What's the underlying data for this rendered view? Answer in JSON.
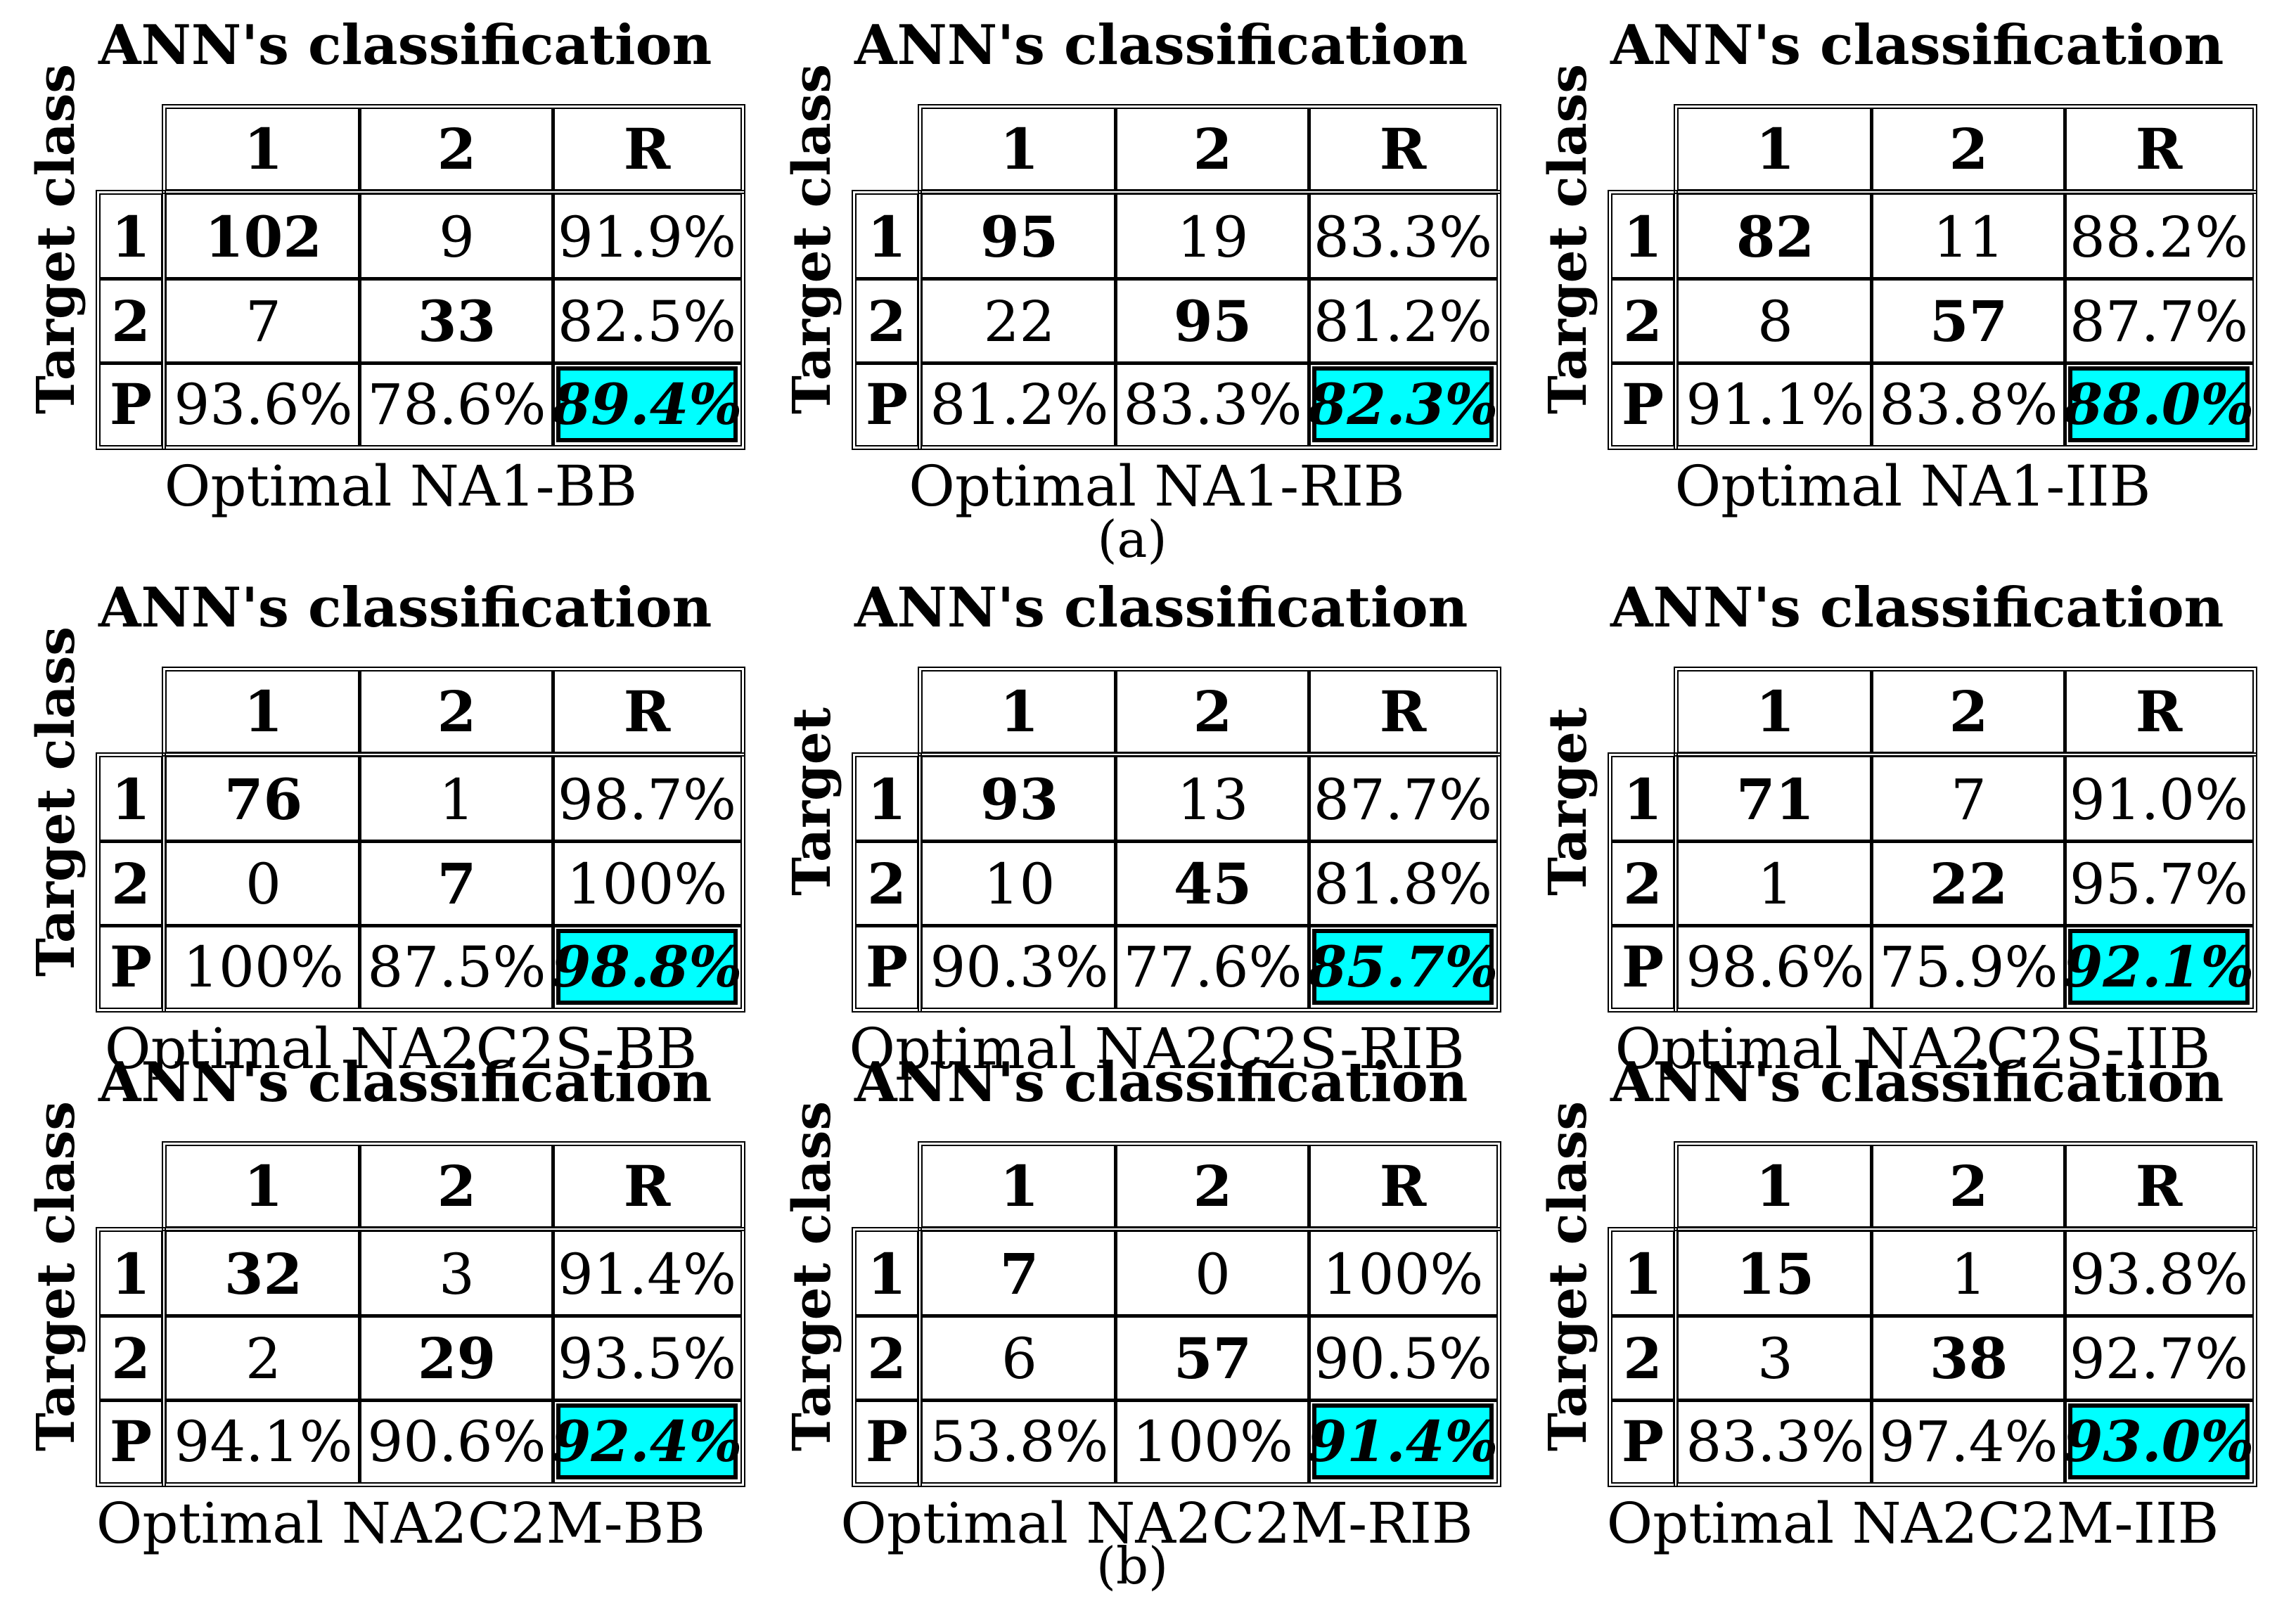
{
  "row_header_label": "Target class",
  "column_header_label": "ANN's classification",
  "col_labels": [
    "1",
    "2",
    "R"
  ],
  "row_labels": [
    "1",
    "2",
    "P"
  ],
  "part_labels": {
    "a": "(a)",
    "b": "(b)"
  },
  "panels": [
    {
      "title": "ANN's classification",
      "ylabel": "Target class",
      "subtitle": "Optimal NA1-BB",
      "cells": [
        [
          "102",
          "9",
          "91.9%"
        ],
        [
          "7",
          "33",
          "82.5%"
        ],
        [
          "93.6%",
          "78.6%",
          "89.4%"
        ]
      ]
    },
    {
      "title": "ANN's classification",
      "ylabel": "Target class",
      "subtitle": "Optimal NA1-RIB",
      "cells": [
        [
          "95",
          "19",
          "83.3%"
        ],
        [
          "22",
          "95",
          "81.2%"
        ],
        [
          "81.2%",
          "83.3%",
          "82.3%"
        ]
      ]
    },
    {
      "title": "ANN's classification",
      "ylabel": "Target class",
      "subtitle": "Optimal NA1-IIB",
      "cells": [
        [
          "82",
          "11",
          "88.2%"
        ],
        [
          "8",
          "57",
          "87.7%"
        ],
        [
          "91.1%",
          "83.8%",
          "88.0%"
        ]
      ]
    },
    {
      "title": "ANN's classification",
      "ylabel": "Target class",
      "subtitle": "Optimal NA2C2S-BB",
      "cells": [
        [
          "76",
          "1",
          "98.7%"
        ],
        [
          "0",
          "7",
          "100%"
        ],
        [
          "100%",
          "87.5%",
          "98.8%"
        ]
      ]
    },
    {
      "title": "ANN's classification",
      "ylabel": "Target",
      "subtitle": "Optimal NA2C2S-RIB",
      "cells": [
        [
          "93",
          "13",
          "87.7%"
        ],
        [
          "10",
          "45",
          "81.8%"
        ],
        [
          "90.3%",
          "77.6%",
          "85.7%"
        ]
      ]
    },
    {
      "title": "ANN's classification",
      "ylabel": "Target",
      "subtitle": "Optimal NA2C2S-IIB",
      "cells": [
        [
          "71",
          "7",
          "91.0%"
        ],
        [
          "1",
          "22",
          "95.7%"
        ],
        [
          "98.6%",
          "75.9%",
          "92.1%"
        ]
      ]
    },
    {
      "title": "ANN's classification",
      "ylabel": "Target class",
      "subtitle": "Optimal NA2C2M-BB",
      "cells": [
        [
          "32",
          "3",
          "91.4%"
        ],
        [
          "2",
          "29",
          "93.5%"
        ],
        [
          "94.1%",
          "90.6%",
          "92.4%"
        ]
      ]
    },
    {
      "title": "ANN's classification",
      "ylabel": "Target class",
      "subtitle": "Optimal NA2C2M-RIB",
      "cells": [
        [
          "7",
          "0",
          "100%"
        ],
        [
          "6",
          "57",
          "90.5%"
        ],
        [
          "53.8%",
          "100%",
          "91.4%"
        ]
      ]
    },
    {
      "title": "ANN's classification",
      "ylabel": "Target class",
      "subtitle": "Optimal NA2C2M-IIB",
      "cells": [
        [
          "15",
          "1",
          "93.8%"
        ],
        [
          "3",
          "38",
          "92.7%"
        ],
        [
          "83.3%",
          "97.4%",
          "93.0%"
        ]
      ]
    }
  ],
  "colors": {
    "accuracy_highlight": "#00FFFF",
    "border": "#000000"
  }
}
